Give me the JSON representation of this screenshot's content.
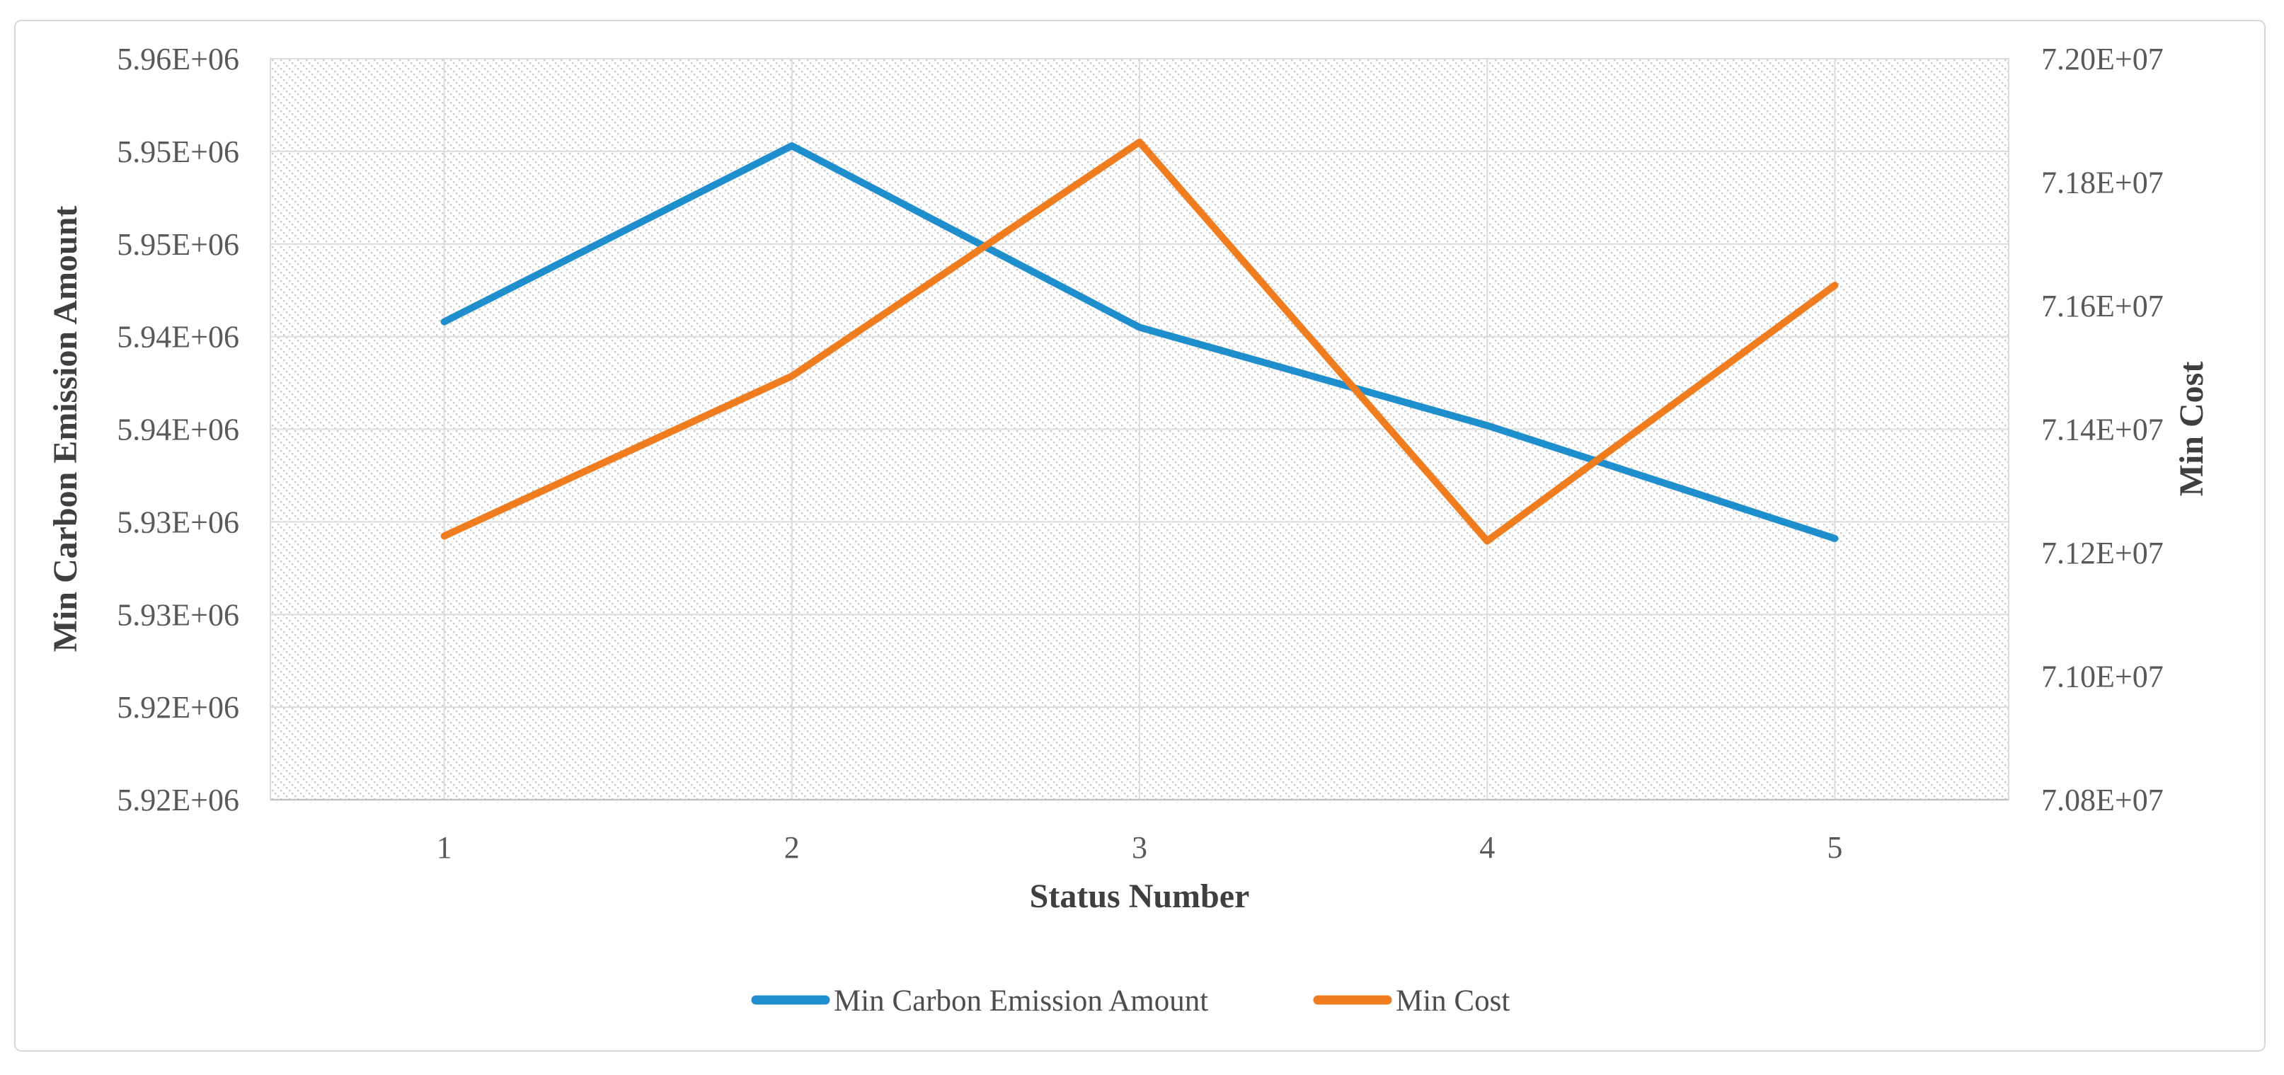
{
  "frame": {
    "background": "#ffffff",
    "border_color": "#d8d8d8"
  },
  "chart_data": {
    "type": "line",
    "title": "",
    "x": [
      1,
      2,
      3,
      4,
      5
    ],
    "x_tick_labels": [
      "1",
      "2",
      "3",
      "4",
      "5"
    ],
    "xlabel": "Status Number",
    "series": [
      {
        "name": "Min Carbon Emission Amount",
        "axis": "left",
        "color": "#1f8ecd",
        "values": [
          5945800,
          5955300,
          5945500,
          5940200,
          5934100
        ]
      },
      {
        "name": "Min Cost",
        "axis": "right",
        "color": "#f07c20",
        "values": [
          71227000,
          71486000,
          71865000,
          71219000,
          71633000
        ]
      }
    ],
    "left_axis": {
      "title": "Min Carbon Emission Amount",
      "min": 5920000,
      "max": 5960000,
      "tick_step": 5000,
      "tick_labels": [
        "5.96E+06",
        "5.95E+06",
        "5.95E+06",
        "5.94E+06",
        "5.94E+06",
        "5.93E+06",
        "5.93E+06",
        "5.92E+06",
        "5.92E+06"
      ]
    },
    "right_axis": {
      "title": "Min Cost",
      "min": 70800000,
      "max": 72000000,
      "tick_step": 200000,
      "tick_labels": [
        "7.20E+07",
        "7.18E+07",
        "7.16E+07",
        "7.14E+07",
        "7.12E+07",
        "7.10E+07",
        "7.08E+07"
      ]
    },
    "legend": [
      "Min Carbon Emission Amount",
      "Min Cost"
    ],
    "legend_position": "bottom",
    "grid": true,
    "plot_background": "light-diagonal-dotted-hatch",
    "colors": {
      "gridline": "#dcdcdc",
      "axis_line": "#c2c2c2",
      "hatch_dot": "#cacaca",
      "tick_text": "#595959",
      "title_text": "#3f3f3f",
      "legend_text": "#4d4d4d"
    }
  }
}
